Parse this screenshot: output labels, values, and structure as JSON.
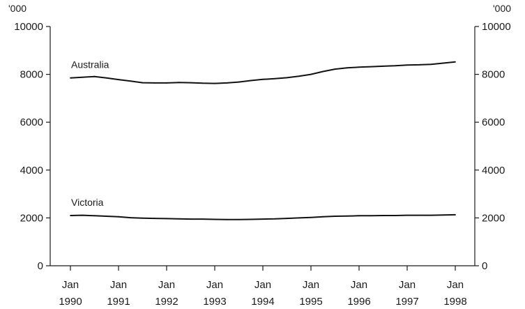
{
  "chart_data": {
    "type": "line",
    "title": "",
    "xlabel": "",
    "ylabel": "'000",
    "ylabel_right": "'000",
    "ylim": [
      0,
      10000
    ],
    "yticks": [
      0,
      2000,
      4000,
      6000,
      8000,
      10000
    ],
    "xlim": [
      1990,
      1998
    ],
    "xticks": [
      {
        "value": 1990,
        "line1": "Jan",
        "line2": "1990"
      },
      {
        "value": 1991,
        "line1": "Jan",
        "line2": "1991"
      },
      {
        "value": 1992,
        "line1": "Jan",
        "line2": "1992"
      },
      {
        "value": 1993,
        "line1": "Jan",
        "line2": "1993"
      },
      {
        "value": 1994,
        "line1": "Jan",
        "line2": "1994"
      },
      {
        "value": 1995,
        "line1": "Jan",
        "line2": "1995"
      },
      {
        "value": 1996,
        "line1": "Jan",
        "line2": "1996"
      },
      {
        "value": 1997,
        "line1": "Jan",
        "line2": "1997"
      },
      {
        "value": 1998,
        "line1": "Jan",
        "line2": "1998"
      }
    ],
    "grid": false,
    "legend": "inline labels",
    "series": [
      {
        "name": "Australia",
        "x": [
          1990.0,
          1990.25,
          1990.5,
          1990.75,
          1991.0,
          1991.25,
          1991.5,
          1991.75,
          1992.0,
          1992.25,
          1992.5,
          1992.75,
          1993.0,
          1993.25,
          1993.5,
          1993.75,
          1994.0,
          1994.25,
          1994.5,
          1994.75,
          1995.0,
          1995.25,
          1995.5,
          1995.75,
          1996.0,
          1996.25,
          1996.5,
          1996.75,
          1997.0,
          1997.25,
          1997.5,
          1997.75,
          1998.0
        ],
        "values": [
          7850,
          7880,
          7910,
          7850,
          7780,
          7720,
          7650,
          7640,
          7640,
          7660,
          7650,
          7630,
          7620,
          7640,
          7680,
          7740,
          7790,
          7820,
          7860,
          7920,
          8000,
          8120,
          8220,
          8270,
          8300,
          8320,
          8340,
          8360,
          8390,
          8400,
          8420,
          8470,
          8520
        ]
      },
      {
        "name": "Victoria",
        "x": [
          1990.0,
          1990.25,
          1990.5,
          1990.75,
          1991.0,
          1991.25,
          1991.5,
          1991.75,
          1992.0,
          1992.25,
          1992.5,
          1992.75,
          1993.0,
          1993.25,
          1993.5,
          1993.75,
          1994.0,
          1994.25,
          1994.5,
          1994.75,
          1995.0,
          1995.25,
          1995.5,
          1995.75,
          1996.0,
          1996.25,
          1996.5,
          1996.75,
          1997.0,
          1997.25,
          1997.5,
          1997.75,
          1998.0
        ],
        "values": [
          2100,
          2110,
          2090,
          2070,
          2050,
          2010,
          1990,
          1980,
          1970,
          1960,
          1950,
          1950,
          1940,
          1930,
          1930,
          1940,
          1950,
          1960,
          1980,
          2000,
          2020,
          2050,
          2070,
          2080,
          2090,
          2090,
          2100,
          2100,
          2110,
          2110,
          2110,
          2120,
          2130
        ]
      }
    ]
  }
}
